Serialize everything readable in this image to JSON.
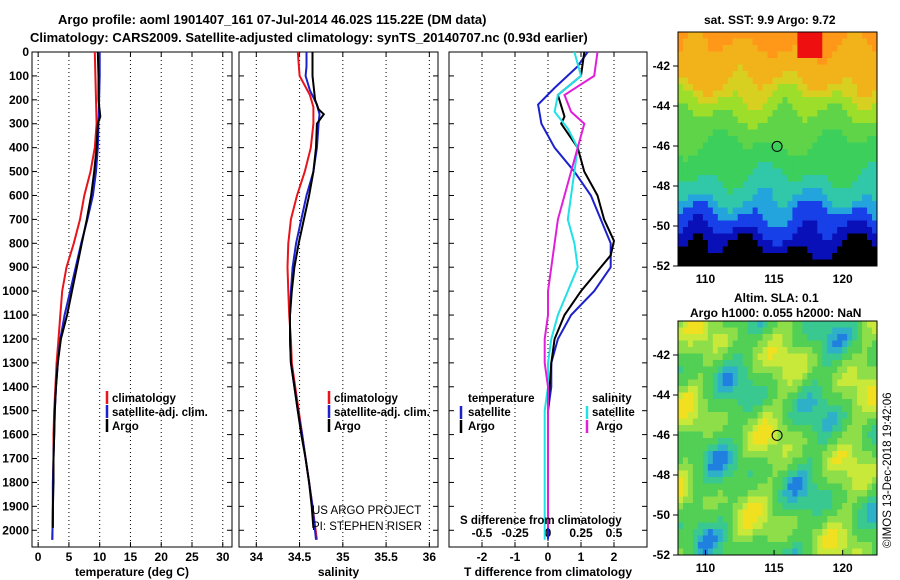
{
  "header": {
    "line1": "Argo profile: aoml 1901407_161 07-Jul-2014 46.02S 115.22E (DM data)",
    "line2": "Climatology: CARS2009. Satellite-adjusted climatology: synTS_20140707.nc (0.93d earlier)"
  },
  "credit": {
    "project": "US ARGO PROJECT",
    "pi": "PI: STEPHEN RISER",
    "imos": "©IMOS 13-Dec-2018 19:42:06"
  },
  "colors": {
    "argo": "#000000",
    "climatology": "#e8141b",
    "satellite_adj": "#1c21cc",
    "sal_satellite": "#20e0e8",
    "sal_argo": "#e020d8"
  },
  "maps": {
    "sst": {
      "title": "sat. SST: 9.9 Argo: 9.72",
      "x_ticks": [
        "110",
        "115",
        "120"
      ],
      "y_ticks": [
        "-42",
        "-44",
        "-46",
        "-48",
        "-50",
        "-52"
      ],
      "xlim": [
        108,
        122.5
      ],
      "ylim": [
        -52,
        -40.3
      ],
      "marker": {
        "lon": 115.22,
        "lat": -46.02
      }
    },
    "sla": {
      "title1": "Altim. SLA: 0.1",
      "title2": "Argo h1000: 0.055 h2000: NaN",
      "x_ticks": [
        "110",
        "115",
        "120"
      ],
      "y_ticks": [
        "-42",
        "-44",
        "-46",
        "-48",
        "-50",
        "-52"
      ],
      "xlim": [
        108,
        122.5
      ],
      "ylim": [
        -52,
        -40.3
      ],
      "marker": {
        "lon": 115.22,
        "lat": -46.02
      }
    }
  },
  "chart_data": [
    {
      "type": "line",
      "panel": "temperature",
      "xlabel": "temperature (deg C)",
      "ylabel": "",
      "xlim": [
        -1,
        31.5
      ],
      "ylim": [
        2070,
        0
      ],
      "x_ticks": [
        "0",
        "5",
        "10",
        "15",
        "20",
        "25",
        "30"
      ],
      "y_ticks": [
        "0",
        "100",
        "200",
        "300",
        "400",
        "500",
        "600",
        "700",
        "800",
        "900",
        "1000",
        "1100",
        "1200",
        "1300",
        "1400",
        "1500",
        "1600",
        "1700",
        "1800",
        "1900",
        "2000"
      ],
      "legend": [
        "climatology",
        "satellite-adj. clim.",
        "Argo"
      ],
      "series": [
        {
          "name": "climatology",
          "color_key": "climatology",
          "points": [
            [
              9.2,
              0
            ],
            [
              9.3,
              100
            ],
            [
              9.4,
              200
            ],
            [
              9.5,
              300
            ],
            [
              9.2,
              400
            ],
            [
              8.5,
              500
            ],
            [
              7.5,
              600
            ],
            [
              6.8,
              700
            ],
            [
              5.8,
              800
            ],
            [
              4.6,
              900
            ],
            [
              3.9,
              1000
            ],
            [
              3.6,
              1100
            ],
            [
              3.3,
              1200
            ],
            [
              3.0,
              1300
            ],
            [
              2.8,
              1400
            ],
            [
              2.6,
              1500
            ],
            [
              2.5,
              1600
            ],
            [
              2.5,
              1700
            ],
            [
              2.4,
              1800
            ],
            [
              2.4,
              1900
            ],
            [
              2.3,
              2040
            ]
          ]
        },
        {
          "name": "satellite-adj. clim.",
          "color_key": "satellite_adj",
          "points": [
            [
              10.0,
              0
            ],
            [
              10.0,
              100
            ],
            [
              9.9,
              200
            ],
            [
              9.8,
              300
            ],
            [
              9.7,
              400
            ],
            [
              9.4,
              500
            ],
            [
              8.9,
              600
            ],
            [
              8.0,
              700
            ],
            [
              7.0,
              800
            ],
            [
              6.1,
              900
            ],
            [
              5.2,
              1000
            ],
            [
              4.3,
              1100
            ],
            [
              3.6,
              1200
            ],
            [
              3.2,
              1300
            ],
            [
              2.9,
              1400
            ],
            [
              2.7,
              1500
            ],
            [
              2.6,
              1600
            ],
            [
              2.5,
              1700
            ],
            [
              2.4,
              1800
            ],
            [
              2.4,
              1900
            ],
            [
              2.3,
              2040
            ]
          ]
        },
        {
          "name": "Argo",
          "color_key": "argo",
          "points": [
            [
              9.7,
              0
            ],
            [
              9.8,
              100
            ],
            [
              9.8,
              200
            ],
            [
              10.1,
              270
            ],
            [
              9.7,
              300
            ],
            [
              9.5,
              400
            ],
            [
              9.1,
              500
            ],
            [
              8.6,
              600
            ],
            [
              7.9,
              700
            ],
            [
              7.1,
              800
            ],
            [
              6.3,
              900
            ],
            [
              5.5,
              1000
            ],
            [
              4.7,
              1100
            ],
            [
              3.7,
              1200
            ],
            [
              3.2,
              1300
            ],
            [
              2.9,
              1400
            ],
            [
              2.7,
              1500
            ],
            [
              2.6,
              1600
            ],
            [
              2.5,
              1700
            ],
            [
              2.5,
              1800
            ],
            [
              2.4,
              1900
            ],
            [
              2.4,
              1990
            ]
          ]
        }
      ]
    },
    {
      "type": "line",
      "panel": "salinity",
      "xlabel": "salinity",
      "ylabel": "",
      "xlim": [
        33.8,
        36.1
      ],
      "ylim": [
        2070,
        0
      ],
      "x_ticks": [
        "34",
        "34.5",
        "35",
        "35.5",
        "36"
      ],
      "legend": [
        "climatology",
        "satellite-adj. clim.",
        "Argo"
      ],
      "series": [
        {
          "name": "climatology",
          "color_key": "climatology",
          "points": [
            [
              34.48,
              0
            ],
            [
              34.5,
              100
            ],
            [
              34.62,
              180
            ],
            [
              34.66,
              230
            ],
            [
              34.66,
              300
            ],
            [
              34.63,
              400
            ],
            [
              34.56,
              500
            ],
            [
              34.47,
              600
            ],
            [
              34.4,
              700
            ],
            [
              34.37,
              800
            ],
            [
              34.36,
              900
            ],
            [
              34.37,
              1000
            ],
            [
              34.38,
              1100
            ],
            [
              34.4,
              1200
            ],
            [
              34.41,
              1300
            ],
            [
              34.45,
              1400
            ],
            [
              34.49,
              1500
            ],
            [
              34.53,
              1600
            ],
            [
              34.57,
              1700
            ],
            [
              34.61,
              1800
            ],
            [
              34.65,
              1900
            ],
            [
              34.7,
              2040
            ]
          ]
        },
        {
          "name": "satellite-adj. clim.",
          "color_key": "satellite_adj",
          "points": [
            [
              34.58,
              0
            ],
            [
              34.58,
              60
            ],
            [
              34.57,
              100
            ],
            [
              34.62,
              160
            ],
            [
              34.7,
              220
            ],
            [
              34.73,
              260
            ],
            [
              34.72,
              300
            ],
            [
              34.7,
              400
            ],
            [
              34.66,
              500
            ],
            [
              34.58,
              600
            ],
            [
              34.52,
              700
            ],
            [
              34.46,
              800
            ],
            [
              34.42,
              900
            ],
            [
              34.4,
              1000
            ],
            [
              34.39,
              1100
            ],
            [
              34.39,
              1200
            ],
            [
              34.4,
              1300
            ],
            [
              34.44,
              1400
            ],
            [
              34.48,
              1500
            ],
            [
              34.53,
              1600
            ],
            [
              34.57,
              1700
            ],
            [
              34.61,
              1800
            ],
            [
              34.65,
              1900
            ],
            [
              34.69,
              2040
            ]
          ]
        },
        {
          "name": "Argo",
          "color_key": "argo",
          "points": [
            [
              34.65,
              0
            ],
            [
              34.65,
              100
            ],
            [
              34.68,
              200
            ],
            [
              34.72,
              240
            ],
            [
              34.78,
              260
            ],
            [
              34.7,
              300
            ],
            [
              34.69,
              400
            ],
            [
              34.66,
              500
            ],
            [
              34.61,
              600
            ],
            [
              34.55,
              700
            ],
            [
              34.49,
              800
            ],
            [
              34.44,
              900
            ],
            [
              34.41,
              1000
            ],
            [
              34.39,
              1100
            ],
            [
              34.39,
              1200
            ],
            [
              34.4,
              1300
            ],
            [
              34.44,
              1400
            ],
            [
              34.48,
              1500
            ],
            [
              34.52,
              1600
            ],
            [
              34.57,
              1700
            ],
            [
              34.61,
              1800
            ],
            [
              34.64,
              1900
            ],
            [
              34.66,
              1990
            ]
          ]
        }
      ]
    },
    {
      "type": "line",
      "panel": "difference",
      "xlabel": "T difference from climatology",
      "xlabel_top": "S difference from climatology",
      "xlim": [
        -3,
        3
      ],
      "ylim": [
        2070,
        0
      ],
      "x_ticks": [
        "-2",
        "-1",
        "0",
        "1",
        "2"
      ],
      "x_ticks_s": [
        "-0.5",
        "-0.25",
        "0",
        "0.25",
        "0.5"
      ],
      "legend_t_title": "temperature",
      "legend_s_title": "salinity",
      "legend_t": [
        "satellite",
        "Argo"
      ],
      "legend_s": [
        "satellite",
        "Argo"
      ],
      "series": [
        {
          "name": "satellite",
          "group": "temperature",
          "color_key": "satellite_adj",
          "points": [
            [
              1.2,
              0
            ],
            [
              0.9,
              60
            ],
            [
              0.2,
              150
            ],
            [
              -0.3,
              220
            ],
            [
              -0.2,
              300
            ],
            [
              0.2,
              400
            ],
            [
              0.8,
              500
            ],
            [
              1.3,
              600
            ],
            [
              1.6,
              700
            ],
            [
              1.9,
              800
            ],
            [
              1.9,
              900
            ],
            [
              1.4,
              1000
            ],
            [
              0.7,
              1100
            ],
            [
              0.3,
              1200
            ],
            [
              0.1,
              1300
            ],
            [
              0.1,
              1400
            ],
            [
              0.0,
              1500
            ],
            [
              0.0,
              1600
            ],
            [
              0.0,
              1700
            ],
            [
              0.0,
              1800
            ],
            [
              0.0,
              1900
            ],
            [
              0.0,
              2040
            ]
          ]
        },
        {
          "name": "Argo",
          "group": "temperature",
          "color_key": "argo",
          "points": [
            [
              1.1,
              0
            ],
            [
              1.0,
              100
            ],
            [
              0.3,
              180
            ],
            [
              0.5,
              270
            ],
            [
              0.4,
              300
            ],
            [
              0.9,
              400
            ],
            [
              1.1,
              500
            ],
            [
              1.5,
              600
            ],
            [
              1.7,
              700
            ],
            [
              2.0,
              790
            ],
            [
              1.9,
              850
            ],
            [
              1.0,
              1000
            ],
            [
              0.5,
              1100
            ],
            [
              0.2,
              1200
            ],
            [
              0.1,
              1300
            ],
            [
              0.05,
              1400
            ],
            [
              0.0,
              1500
            ],
            [
              0.0,
              1600
            ],
            [
              0.0,
              1700
            ],
            [
              0.0,
              1800
            ],
            [
              0.0,
              1900
            ],
            [
              0.0,
              1990
            ]
          ]
        },
        {
          "name": "satellite",
          "group": "salinity",
          "color_key": "sal_satellite",
          "points": [
            [
              0.8,
              0
            ],
            [
              1.0,
              100
            ],
            [
              0.3,
              180
            ],
            [
              0.2,
              250
            ],
            [
              0.6,
              320
            ],
            [
              0.9,
              400
            ],
            [
              0.8,
              500
            ],
            [
              0.7,
              600
            ],
            [
              0.6,
              700
            ],
            [
              0.8,
              800
            ],
            [
              0.9,
              900
            ],
            [
              0.6,
              1000
            ],
            [
              0.3,
              1100
            ],
            [
              0.1,
              1200
            ],
            [
              0.0,
              1300
            ],
            [
              0.0,
              1400
            ],
            [
              -0.1,
              1500
            ],
            [
              -0.1,
              1600
            ],
            [
              -0.1,
              1700
            ],
            [
              -0.1,
              1800
            ],
            [
              -0.1,
              1900
            ],
            [
              -0.1,
              2040
            ]
          ]
        },
        {
          "name": "Argo",
          "group": "salinity",
          "color_key": "sal_argo",
          "points": [
            [
              1.5,
              0
            ],
            [
              1.4,
              100
            ],
            [
              0.5,
              180
            ],
            [
              0.7,
              250
            ],
            [
              1.1,
              300
            ],
            [
              0.9,
              400
            ],
            [
              0.7,
              500
            ],
            [
              0.5,
              600
            ],
            [
              0.3,
              700
            ],
            [
              0.2,
              800
            ],
            [
              0.1,
              900
            ],
            [
              0.0,
              1000
            ],
            [
              0.0,
              1100
            ],
            [
              -0.1,
              1200
            ],
            [
              -0.1,
              1300
            ],
            [
              0.0,
              1400
            ],
            [
              0.0,
              1500
            ],
            [
              0.0,
              1600
            ],
            [
              0.0,
              1700
            ],
            [
              0.0,
              1800
            ],
            [
              0.0,
              1900
            ],
            [
              0.0,
              1990
            ]
          ]
        }
      ]
    }
  ]
}
